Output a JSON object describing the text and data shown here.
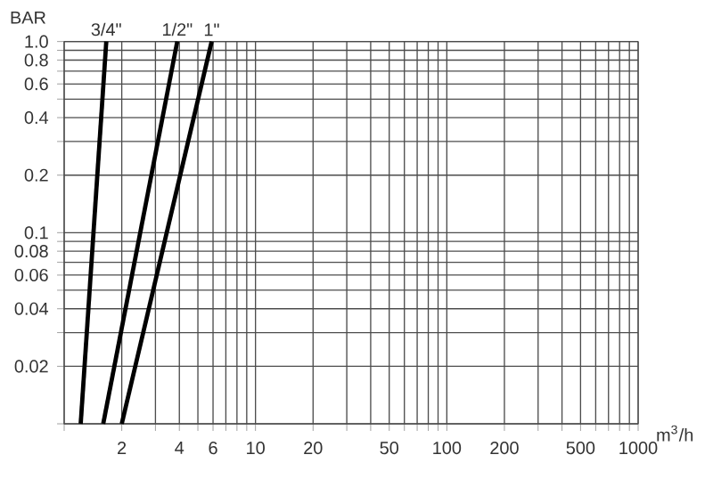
{
  "chart_data": {
    "type": "line",
    "xlabel": "m$^{3}$/h",
    "ylabel": "BAR",
    "log": "xy",
    "grid": true,
    "legend": false,
    "marker": "none",
    "line_style": "solid",
    "xlim": [
      1,
      1000
    ],
    "ylim": [
      0.01,
      1.0
    ],
    "xticks": [
      {
        "value": 1,
        "label": null
      },
      2,
      {
        "value": 3,
        "label": null
      },
      4,
      {
        "value": 5,
        "label": null
      },
      6,
      {
        "value": 7,
        "label": null
      },
      {
        "value": 8,
        "label": null
      },
      {
        "value": 9,
        "label": null
      },
      10,
      20,
      {
        "value": 30,
        "label": null
      },
      {
        "value": 40,
        "label": null
      },
      50,
      {
        "value": 60,
        "label": null
      },
      {
        "value": 70,
        "label": null
      },
      {
        "value": 80,
        "label": null
      },
      {
        "value": 90,
        "label": null
      },
      100,
      200,
      {
        "value": 300,
        "label": null
      },
      {
        "value": 400,
        "label": null
      },
      500,
      {
        "value": 600,
        "label": null
      },
      {
        "value": 700,
        "label": null
      },
      {
        "value": 800,
        "label": null
      },
      {
        "value": 900,
        "label": null
      },
      1000
    ],
    "yticks": [
      {
        "value": 0.01,
        "label": null
      },
      0.02,
      {
        "value": 0.03,
        "label": null
      },
      0.04,
      {
        "value": 0.05,
        "label": null
      },
      0.06,
      {
        "value": 0.07,
        "label": null
      },
      0.08,
      {
        "value": 0.09,
        "label": null
      },
      0.1,
      0.2,
      {
        "value": 0.3,
        "label": null
      },
      0.4,
      {
        "value": 0.5,
        "label": null
      },
      0.6,
      {
        "value": 0.7,
        "label": null
      },
      0.8,
      {
        "value": 0.9,
        "label": null
      },
      {
        "value": 1.0,
        "label": "1.0"
      }
    ],
    "series": [
      {
        "name": "3/4\"",
        "color": "#000000",
        "x": [
          1.22,
          1.66
        ],
        "values": [
          0.01,
          1.0
        ]
      },
      {
        "name": "1/2\"",
        "color": "#000000",
        "x": [
          1.6,
          3.9
        ],
        "values": [
          0.01,
          1.0
        ]
      },
      {
        "name": "1\"",
        "color": "#000000",
        "x": [
          2.0,
          5.9
        ],
        "values": [
          0.01,
          1.0
        ]
      }
    ]
  }
}
